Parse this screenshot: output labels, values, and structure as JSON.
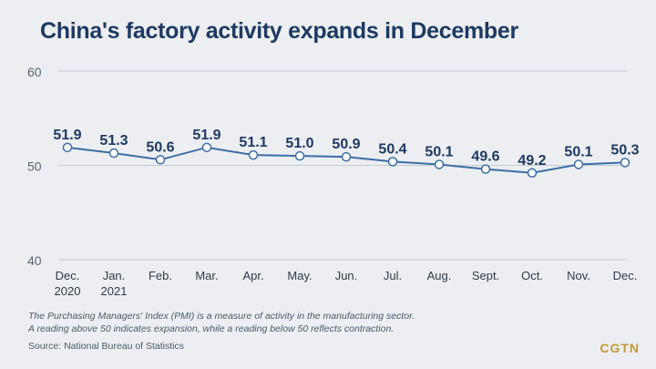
{
  "title": "China's factory activity expands in December",
  "note": {
    "line1": "The Purchasing Managers' Index (PMI) is a measure of activity in the manufacturing sector.",
    "line2": "A reading above 50 indicates expansion, while a reading below 50 reflects contraction."
  },
  "source": "Source: National Bureau of Statistics",
  "logo": "CGTN",
  "colors": {
    "line": "#3b6ea5",
    "label": "#1d3a63",
    "grid": "#c5cbd3",
    "marker_fill": "#ffffff"
  },
  "chart_data": {
    "type": "line",
    "title": "China's factory activity expands in December",
    "categories": [
      [
        "Dec.",
        "2020"
      ],
      [
        "Jan.",
        "2021"
      ],
      [
        "Feb."
      ],
      [
        "Mar."
      ],
      [
        "Apr."
      ],
      [
        "May."
      ],
      [
        "Jun."
      ],
      [
        "Jul."
      ],
      [
        "Aug."
      ],
      [
        "Sept."
      ],
      [
        "Oct."
      ],
      [
        "Nov."
      ],
      [
        "Dec."
      ]
    ],
    "series": [
      {
        "values": [
          51.9,
          51.3,
          50.6,
          51.9,
          51.1,
          51.0,
          50.9,
          50.4,
          50.1,
          49.6,
          49.2,
          50.1,
          50.3
        ]
      }
    ],
    "data_labels": [
      "51.9",
      "51.3",
      "50.6",
      "51.9",
      "51.1",
      "51.0",
      "50.9",
      "50.4",
      "50.1",
      "49.6",
      "49.2",
      "50.1",
      "50.3"
    ],
    "ylim": [
      40,
      60
    ],
    "yticks": [
      40,
      50,
      60
    ],
    "grid": "horizontal",
    "legend": "none"
  }
}
